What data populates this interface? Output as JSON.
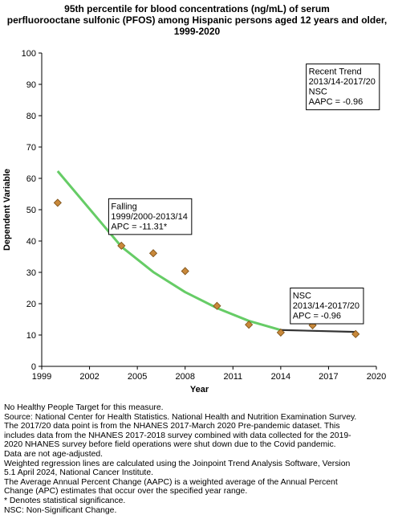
{
  "title_lines": [
    "95th percentile for blood concentrations (ng/mL) of serum",
    "perfluorooctane sulfonic (PFOS) among Hispanic persons aged 12 years and older,",
    "1999-2020"
  ],
  "chart_data": {
    "type": "scatter",
    "title": "95th percentile for blood concentrations (ng/mL) of serum perfluorooctane sulfonic (PFOS) among Hispanic persons aged 12 years and older, 1999-2020",
    "xlabel": "Year",
    "ylabel": "Dependent Variable",
    "xlim": [
      1999,
      2020
    ],
    "ylim": [
      0,
      100
    ],
    "x_ticks": [
      "1999",
      "2002",
      "2005",
      "2008",
      "2011",
      "2014",
      "2017",
      "2020"
    ],
    "y_ticks": [
      "0",
      "10",
      "20",
      "30",
      "40",
      "50",
      "60",
      "70",
      "80",
      "90",
      "100"
    ],
    "grid": false,
    "points": [
      {
        "x": 2000,
        "y": 52.2
      },
      {
        "x": 2004,
        "y": 38.5
      },
      {
        "x": 2006,
        "y": 36.1
      },
      {
        "x": 2008,
        "y": 30.4
      },
      {
        "x": 2010,
        "y": 19.3
      },
      {
        "x": 2012,
        "y": 13.3
      },
      {
        "x": 2014,
        "y": 10.8
      },
      {
        "x": 2016,
        "y": 13.1
      },
      {
        "x": 2018.7,
        "y": 10.3
      }
    ],
    "trend_segments": [
      {
        "color": "#66cc66",
        "x": [
          2000,
          2004,
          2006,
          2008,
          2010,
          2012,
          2014
        ],
        "y": [
          62.3,
          38.2,
          30.1,
          23.7,
          18.6,
          14.5,
          11.6
        ]
      },
      {
        "color": "#333333",
        "x": [
          2014,
          2018.7
        ],
        "y": [
          11.6,
          11.0
        ]
      }
    ],
    "annotations": [
      {
        "lines": [
          "Falling",
          "1999/2000-2013/14",
          "APC = -11.31*"
        ],
        "anchor_x": 2003.2,
        "anchor_y": 53.5
      },
      {
        "lines": [
          "NSC",
          "2013/14-2017/20",
          "APC = -0.96"
        ],
        "anchor_x": 2014.6,
        "anchor_y": 25
      },
      {
        "lines": [
          "Recent Trend",
          "2013/14-2017/20",
          "NSC",
          "AAPC = -0.96"
        ],
        "anchor_x": 2015.6,
        "anchor_y": 96.5
      }
    ],
    "colors": {
      "marker_fill": "#c8883a",
      "marker_stroke": "#7a4e14",
      "trend_main": "#66cc66",
      "trend_recent": "#333333"
    }
  },
  "notes": [
    "No Healthy People Target for this measure.",
    "Source: National Center for Health Statistics. National Health and Nutrition Examination Survey.",
    "The 2017/20 data point is from the NHANES 2017-March 2020 Pre-pandemic dataset. This",
    "includes data from the NHANES 2017-2018 survey combined with data collected for the 2019-",
    "2020 NHANES survey before field operations were shut down due to the Covid pandemic.",
    "Data are not age-adjusted.",
    "Weighted regression lines are calculated using the Joinpoint Trend Analysis Software, Version",
    "5.1 April 2024, National Cancer Institute.",
    "The Average Annual Percent Change (AAPC) is a weighted average of the Annual Percent",
    "Change (APC) estimates that occur over the specified year range.",
    "* Denotes statistical significance.",
    "NSC: Non-Significant Change."
  ]
}
